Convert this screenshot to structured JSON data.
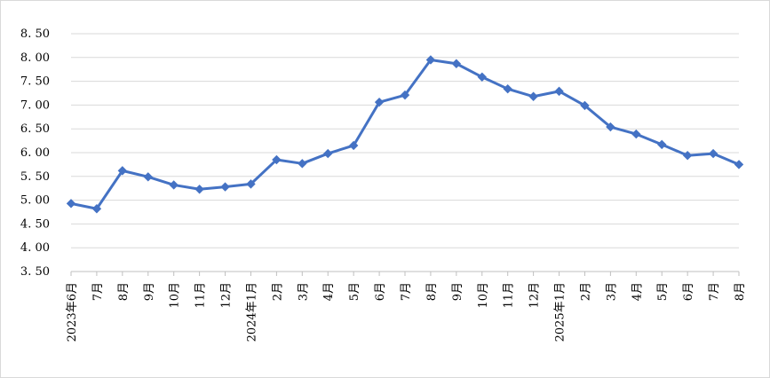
{
  "chart_data": {
    "type": "line",
    "title": "",
    "xlabel": "",
    "ylabel": "",
    "ylim": [
      3.5,
      8.5
    ],
    "yticks": [
      "3. 50",
      "4. 00",
      "4. 50",
      "5. 00",
      "5. 50",
      "6. 00",
      "6. 50",
      "7. 00",
      "7. 50",
      "8. 00",
      "8. 50"
    ],
    "grid": true,
    "legend": "none",
    "categories": [
      "2023年6月",
      "7月",
      "8月",
      "9月",
      "10月",
      "11月",
      "12月",
      "2024年1月",
      "2月",
      "3月",
      "4月",
      "5月",
      "6月",
      "7月",
      "8月",
      "9月",
      "10月",
      "11月",
      "12月",
      "2025年1月",
      "2月",
      "3月",
      "4月",
      "5月",
      "6月",
      "7月",
      "8月"
    ],
    "series": [
      {
        "name": "",
        "color": "#4472C4",
        "values": [
          4.93,
          4.82,
          5.62,
          5.49,
          5.32,
          5.23,
          5.28,
          5.34,
          5.85,
          5.77,
          5.98,
          6.15,
          7.06,
          7.21,
          7.95,
          7.87,
          7.59,
          7.34,
          7.18,
          7.29,
          6.99,
          6.54,
          6.39,
          6.17,
          5.94,
          5.98,
          5.75
        ]
      }
    ]
  }
}
